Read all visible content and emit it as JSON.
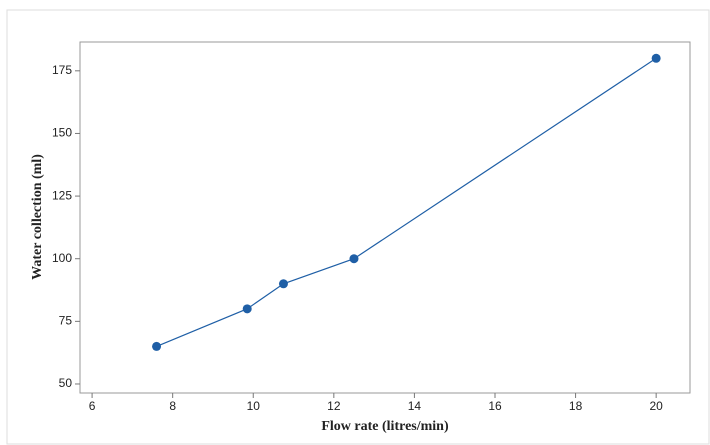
{
  "chart_data": {
    "type": "line",
    "x_label": "Flow rate (litres/min)",
    "y_label": "Water collection (ml)",
    "series": [
      {
        "color": "#1f5fa6",
        "x": [
          7.6,
          9.85,
          10.75,
          12.5,
          20
        ],
        "values": [
          65,
          80,
          90,
          100,
          180
        ]
      }
    ],
    "xlim": [
      5.7,
      20.84
    ],
    "xticks": [
      6,
      8,
      10,
      12,
      14,
      16,
      18,
      20
    ],
    "ylim": [
      46.4,
      186.5
    ],
    "yticks": [
      50,
      75,
      100,
      125,
      150,
      175
    ]
  }
}
